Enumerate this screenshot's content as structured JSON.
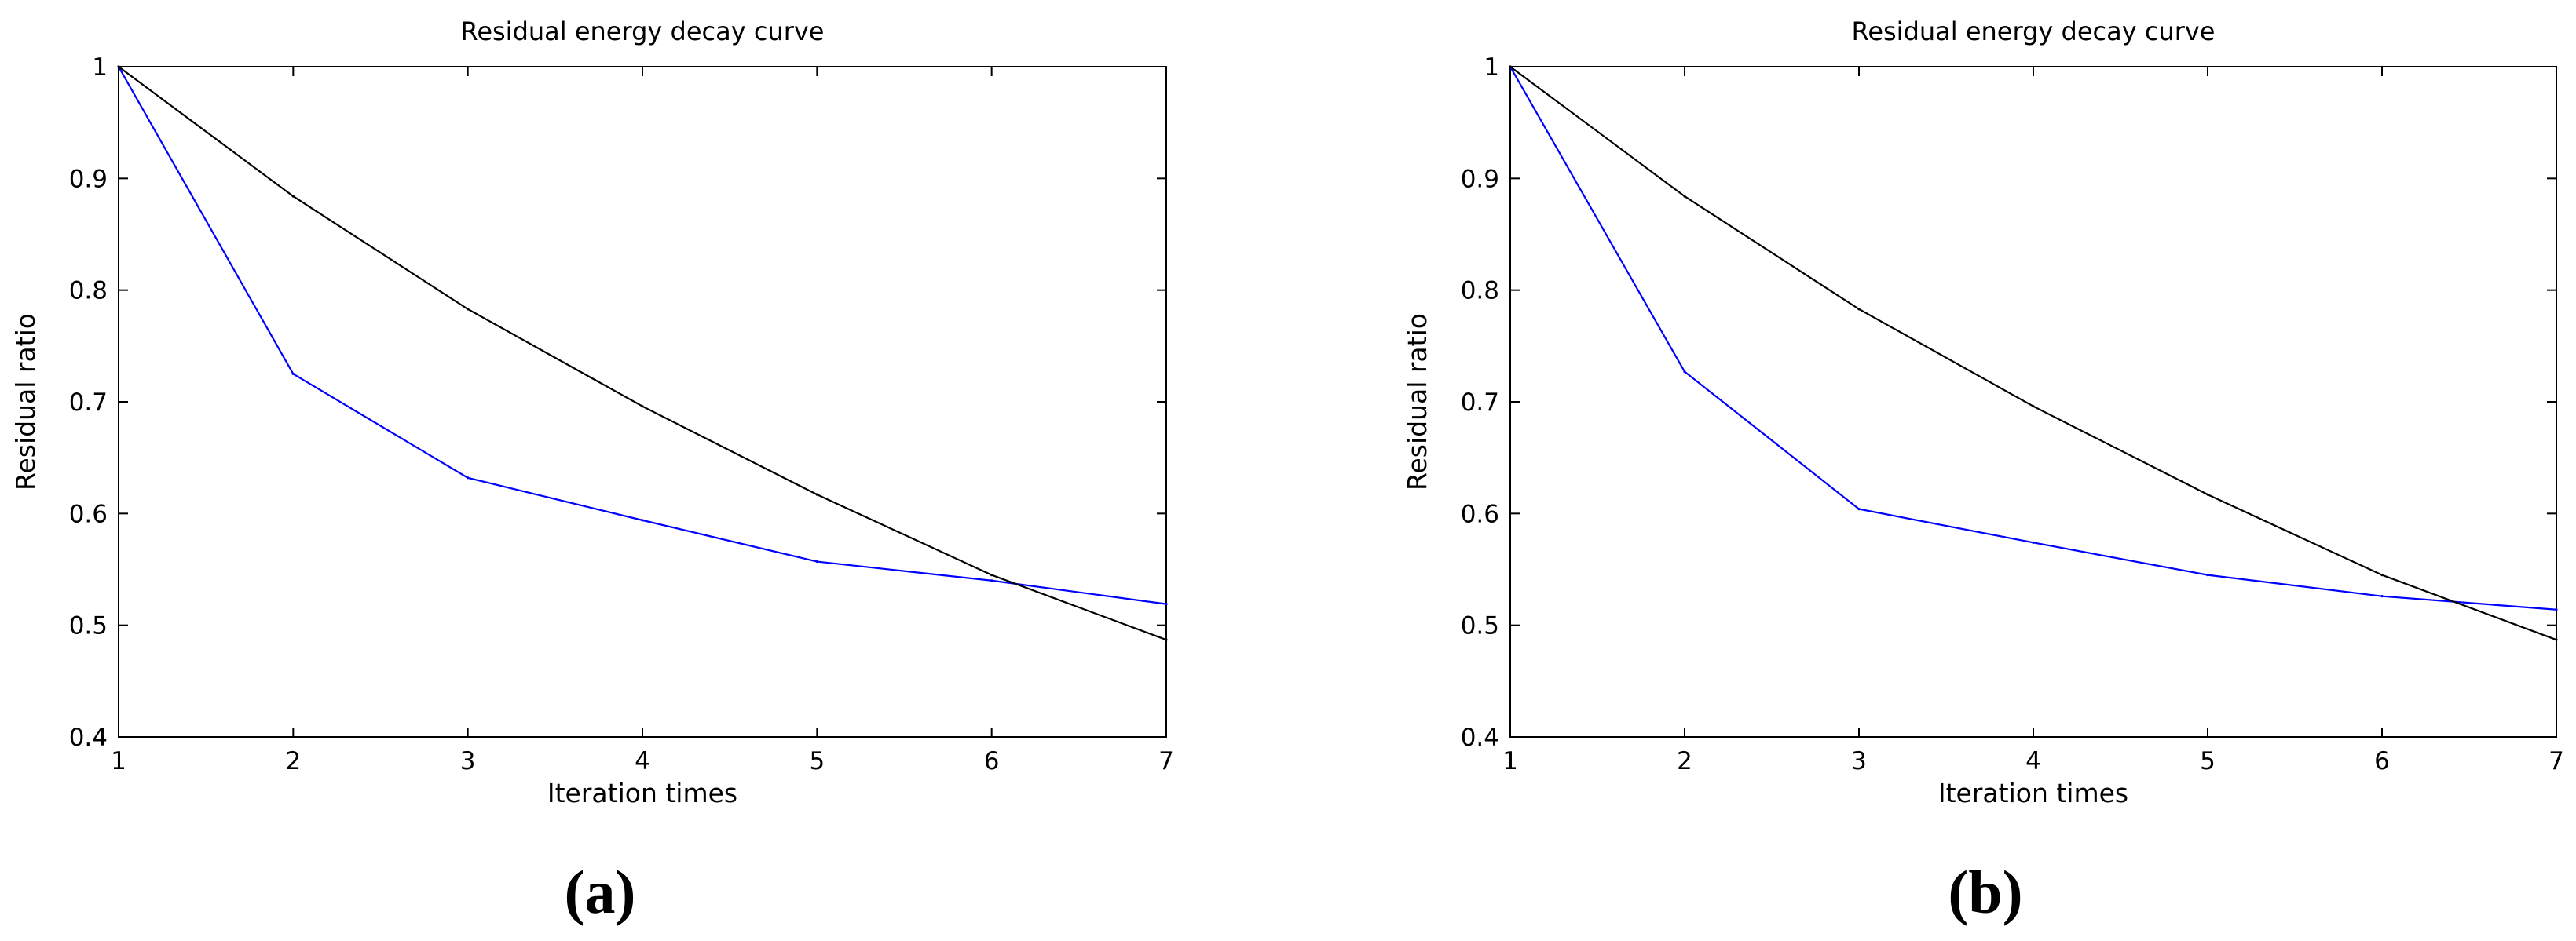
{
  "chart_data": [
    {
      "type": "line",
      "title": "Residual energy decay curve",
      "xlabel": "Iteration times",
      "ylabel": "Residual ratio",
      "panel_label": "(a)",
      "xlim": [
        1,
        7
      ],
      "ylim": [
        0.4,
        1
      ],
      "xticks": [
        "1",
        "2",
        "3",
        "4",
        "5",
        "6",
        "7"
      ],
      "yticks": [
        "0.4",
        "0.5",
        "0.6",
        "0.7",
        "0.8",
        "0.9",
        "1"
      ],
      "grid": false,
      "x": [
        1,
        2,
        3,
        4,
        5,
        6,
        7
      ],
      "series": [
        {
          "color": "#0000ff",
          "values": [
            1.0,
            0.725,
            0.632,
            0.594,
            0.557,
            0.54,
            0.519
          ]
        },
        {
          "color": "#000000",
          "values": [
            1.0,
            0.884,
            0.783,
            0.696,
            0.617,
            0.545,
            0.487
          ]
        }
      ]
    },
    {
      "type": "line",
      "title": "Residual energy decay curve",
      "xlabel": "Iteration times",
      "ylabel": "Residual ratio",
      "panel_label": "(b)",
      "xlim": [
        1,
        7
      ],
      "ylim": [
        0.4,
        1
      ],
      "xticks": [
        "1",
        "2",
        "3",
        "4",
        "5",
        "6",
        "7"
      ],
      "yticks": [
        "0.4",
        "0.5",
        "0.6",
        "0.7",
        "0.8",
        "0.9",
        "1"
      ],
      "grid": false,
      "x": [
        1,
        2,
        3,
        4,
        5,
        6,
        7
      ],
      "series": [
        {
          "color": "#0000ff",
          "values": [
            1.0,
            0.727,
            0.604,
            0.574,
            0.545,
            0.526,
            0.514
          ]
        },
        {
          "color": "#000000",
          "values": [
            1.0,
            0.884,
            0.783,
            0.696,
            0.617,
            0.545,
            0.487
          ]
        }
      ]
    }
  ]
}
